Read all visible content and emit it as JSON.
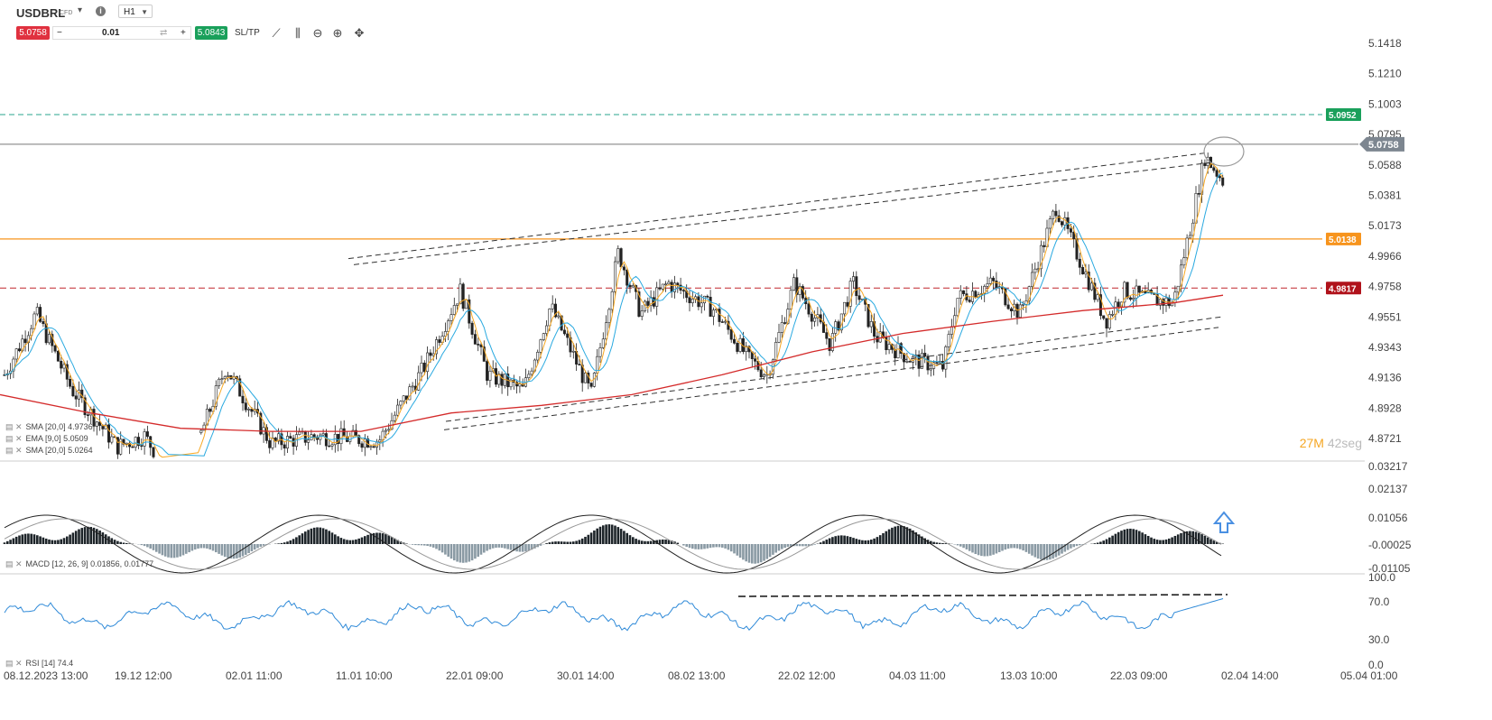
{
  "toolbar": {
    "symbol": "USDBRL",
    "instrument_type": "CFD",
    "timeframe": "H1",
    "sell_price": "5.0758",
    "buy_price": "5.0843",
    "quantity": "0.01",
    "minus": "−",
    "plus": "+",
    "swap_icon": "⇄",
    "sltp_label": "SL/TP",
    "info_icon": "i",
    "dropdown_icon": "▾",
    "tools": [
      "line-tool-icon",
      "candles-icon",
      "zoom-out-icon",
      "zoom-in-icon",
      "crosshair-icon"
    ]
  },
  "price_axis": {
    "ticks": [
      "5.1418",
      "5.1210",
      "5.1003",
      "5.0795",
      "5.0588",
      "5.0381",
      "5.0173",
      "4.9966",
      "4.9758",
      "4.9551",
      "4.9343",
      "4.9136",
      "4.8928",
      "4.8721"
    ],
    "badges": [
      {
        "label": "5.0952",
        "value": 5.0952,
        "color": "#1aa05b"
      },
      {
        "label": "5.0758",
        "value": 5.0758,
        "color": "#7d8690"
      },
      {
        "label": "5.0138",
        "value": 5.0138,
        "color": "#f7941d"
      },
      {
        "label": "4.9817",
        "value": 4.9817,
        "color": "#b0121b"
      }
    ]
  },
  "indicators": {
    "sma_a": "SMA [20,0] 4.9736",
    "ema": "EMA [9,0] 5.0509",
    "sma_b": "SMA [20,0] 5.0264",
    "macd": "MACD [12, 26, 9] 0.01856, 0.01777",
    "rsi": "RSI [14] 74.4"
  },
  "macd_axis": [
    "0.03217",
    "0.02137",
    "0.01056",
    "-0.00025",
    "-0.01105"
  ],
  "rsi_axis": [
    "100.0",
    "70.0",
    "30.0",
    "0.0"
  ],
  "time_axis": [
    "08.12.2023 13:00",
    "19.12 12:00",
    "02.01 11:00",
    "11.01 10:00",
    "22.01 09:00",
    "30.01 14:00",
    "08.02 13:00",
    "22.02 12:00",
    "04.03 11:00",
    "13.03 10:00",
    "22.03 09:00",
    "02.04 14:00",
    "05.04 01:00"
  ],
  "timer": {
    "minutes": "27M",
    "seconds": "42seg"
  },
  "colors": {
    "ema": "#f7a823",
    "sma_fast": "#29a9e0",
    "sma_slow": "#d42b2b",
    "macd_hist": "#1d2429",
    "macd_hist_neg": "#8a9aa4",
    "rsi": "#2f8ad8",
    "up_arrow": "#4a90e2"
  }
}
